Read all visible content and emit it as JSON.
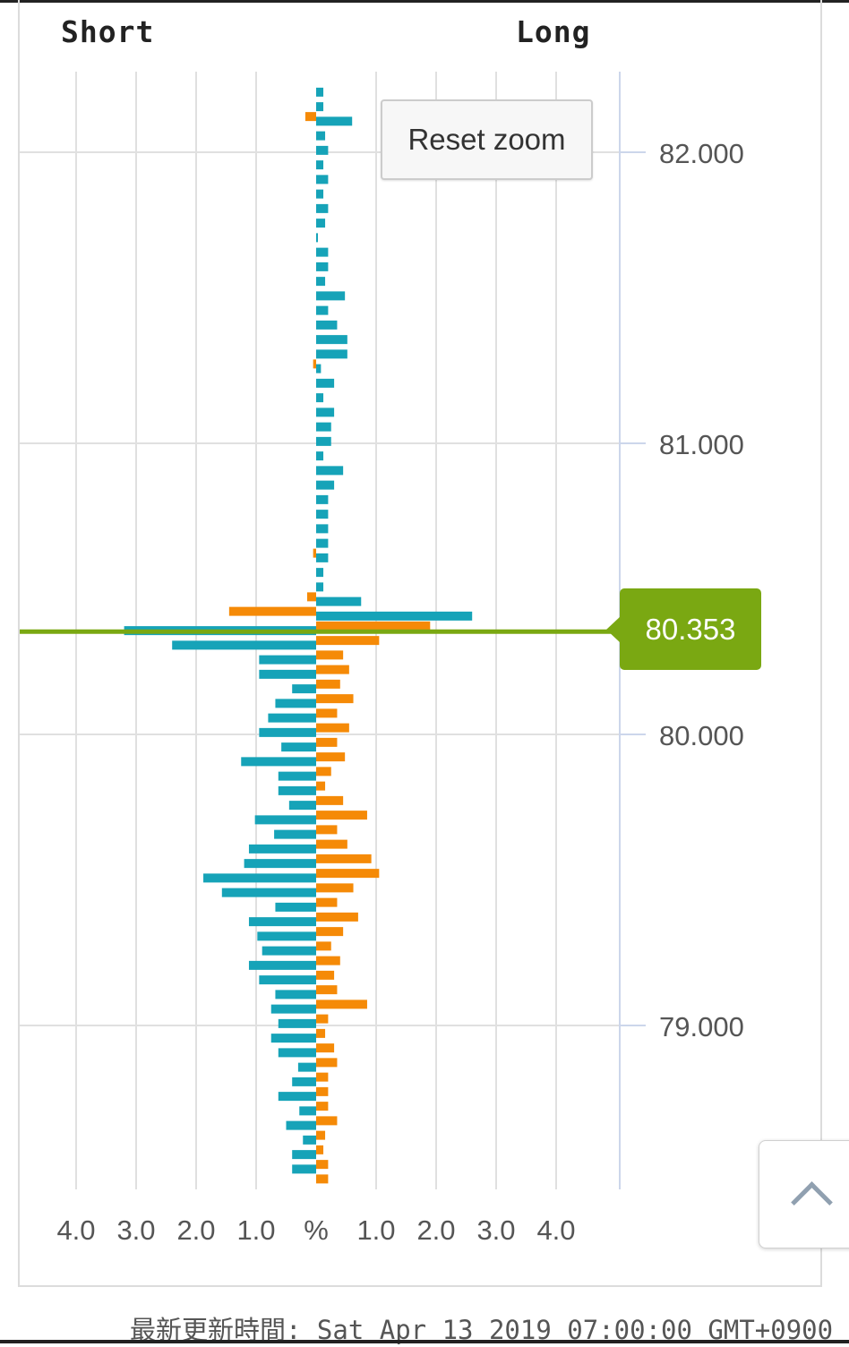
{
  "header": {
    "short_label": "Short",
    "long_label": "Long"
  },
  "controls": {
    "reset_zoom_label": "Reset zoom"
  },
  "current_price": {
    "label": "80.353",
    "value": 80.353,
    "color": "#7aa812"
  },
  "footer": {
    "updated_text": "最新更新時間: Sat Apr 13 2019 07:00:00 GMT+0900"
  },
  "scroll_top": {
    "icon": "chevron-up-icon"
  },
  "chart_data": {
    "type": "bar",
    "orientation": "horizontal-diverging",
    "title": "",
    "x_axis": {
      "tick_labels": [
        "4.0",
        "3.0",
        "2.0",
        "1.0",
        "%",
        "1.0",
        "2.0",
        "3.0",
        "4.0"
      ],
      "tick_values": [
        -4,
        -3,
        -2,
        -1,
        0,
        1,
        2,
        3,
        4
      ],
      "range": [
        -5,
        5
      ]
    },
    "y_axis": {
      "tick_labels": [
        "82.000",
        "81.000",
        "80.000",
        "79.000"
      ],
      "tick_values": [
        82.0,
        81.0,
        80.0,
        79.0
      ],
      "range": [
        78.45,
        82.25
      ],
      "side": "right"
    },
    "grid": true,
    "colors": {
      "teal": "#16a3b8",
      "orange": "#f58a07"
    },
    "price_step": 0.05,
    "prices": [
      82.2,
      82.15,
      82.1,
      82.05,
      82.0,
      81.95,
      81.9,
      81.85,
      81.8,
      81.75,
      81.7,
      81.65,
      81.6,
      81.55,
      81.5,
      81.45,
      81.4,
      81.35,
      81.3,
      81.25,
      81.2,
      81.15,
      81.1,
      81.05,
      81.0,
      80.95,
      80.9,
      80.85,
      80.8,
      80.75,
      80.7,
      80.65,
      80.6,
      80.55,
      80.5,
      80.45,
      80.4,
      80.35,
      80.3,
      80.25,
      80.2,
      80.15,
      80.1,
      80.05,
      80.0,
      79.95,
      79.9,
      79.85,
      79.8,
      79.75,
      79.7,
      79.65,
      79.6,
      79.55,
      79.5,
      79.45,
      79.4,
      79.35,
      79.3,
      79.25,
      79.2,
      79.15,
      79.1,
      79.05,
      79.0,
      78.95,
      78.9,
      78.85,
      78.8,
      78.75,
      78.7,
      78.65,
      78.6,
      78.55,
      78.5
    ],
    "series": [
      {
        "color": "#16a3b8",
        "values": [
          0.12,
          0.12,
          0.6,
          0.15,
          0.2,
          0.12,
          0.2,
          0.12,
          0.2,
          0.15,
          0.03,
          0.2,
          0.2,
          0.15,
          0.48,
          0.2,
          0.35,
          0.52,
          0.52,
          0.08,
          0.3,
          0.12,
          0.3,
          0.25,
          0.25,
          0.12,
          0.45,
          0.3,
          0.2,
          0.2,
          0.2,
          0.2,
          0.2,
          0.12,
          0.12,
          0.75,
          2.6,
          -3.2,
          -2.4,
          -0.95,
          -0.95,
          -0.4,
          -0.68,
          -0.8,
          -0.95,
          -0.58,
          -1.25,
          -0.63,
          -0.63,
          -0.45,
          -1.02,
          -0.7,
          -1.12,
          -1.2,
          -1.88,
          -1.57,
          -0.68,
          -1.12,
          -0.98,
          -0.9,
          -1.12,
          -0.95,
          -0.68,
          -0.75,
          -0.63,
          -0.75,
          -0.63,
          -0.3,
          -0.4,
          -0.63,
          -0.28,
          -0.5,
          -0.22,
          -0.4,
          -0.4
        ]
      },
      {
        "color": "#f58a07",
        "values": [
          0,
          -0.18,
          0,
          0,
          0,
          0,
          0,
          0,
          0,
          0,
          0,
          0,
          0,
          0,
          0,
          0,
          0,
          0,
          -0.05,
          0,
          0,
          0,
          0,
          0,
          0,
          0,
          0,
          0,
          0,
          0,
          0,
          -0.05,
          0,
          0,
          -0.15,
          -1.45,
          1.9,
          1.05,
          0.45,
          0.55,
          0.4,
          0.62,
          0.35,
          0.55,
          0.35,
          0.48,
          0.25,
          0.15,
          0.45,
          0.85,
          0.35,
          0.52,
          0.92,
          1.05,
          0.62,
          0.35,
          0.7,
          0.45,
          0.25,
          0.4,
          0.3,
          0.35,
          0.85,
          0.2,
          0.15,
          0.3,
          0.35,
          0.2,
          0.2,
          0.2,
          0.35,
          0.15,
          0.12,
          0.2,
          0.2
        ]
      }
    ]
  }
}
